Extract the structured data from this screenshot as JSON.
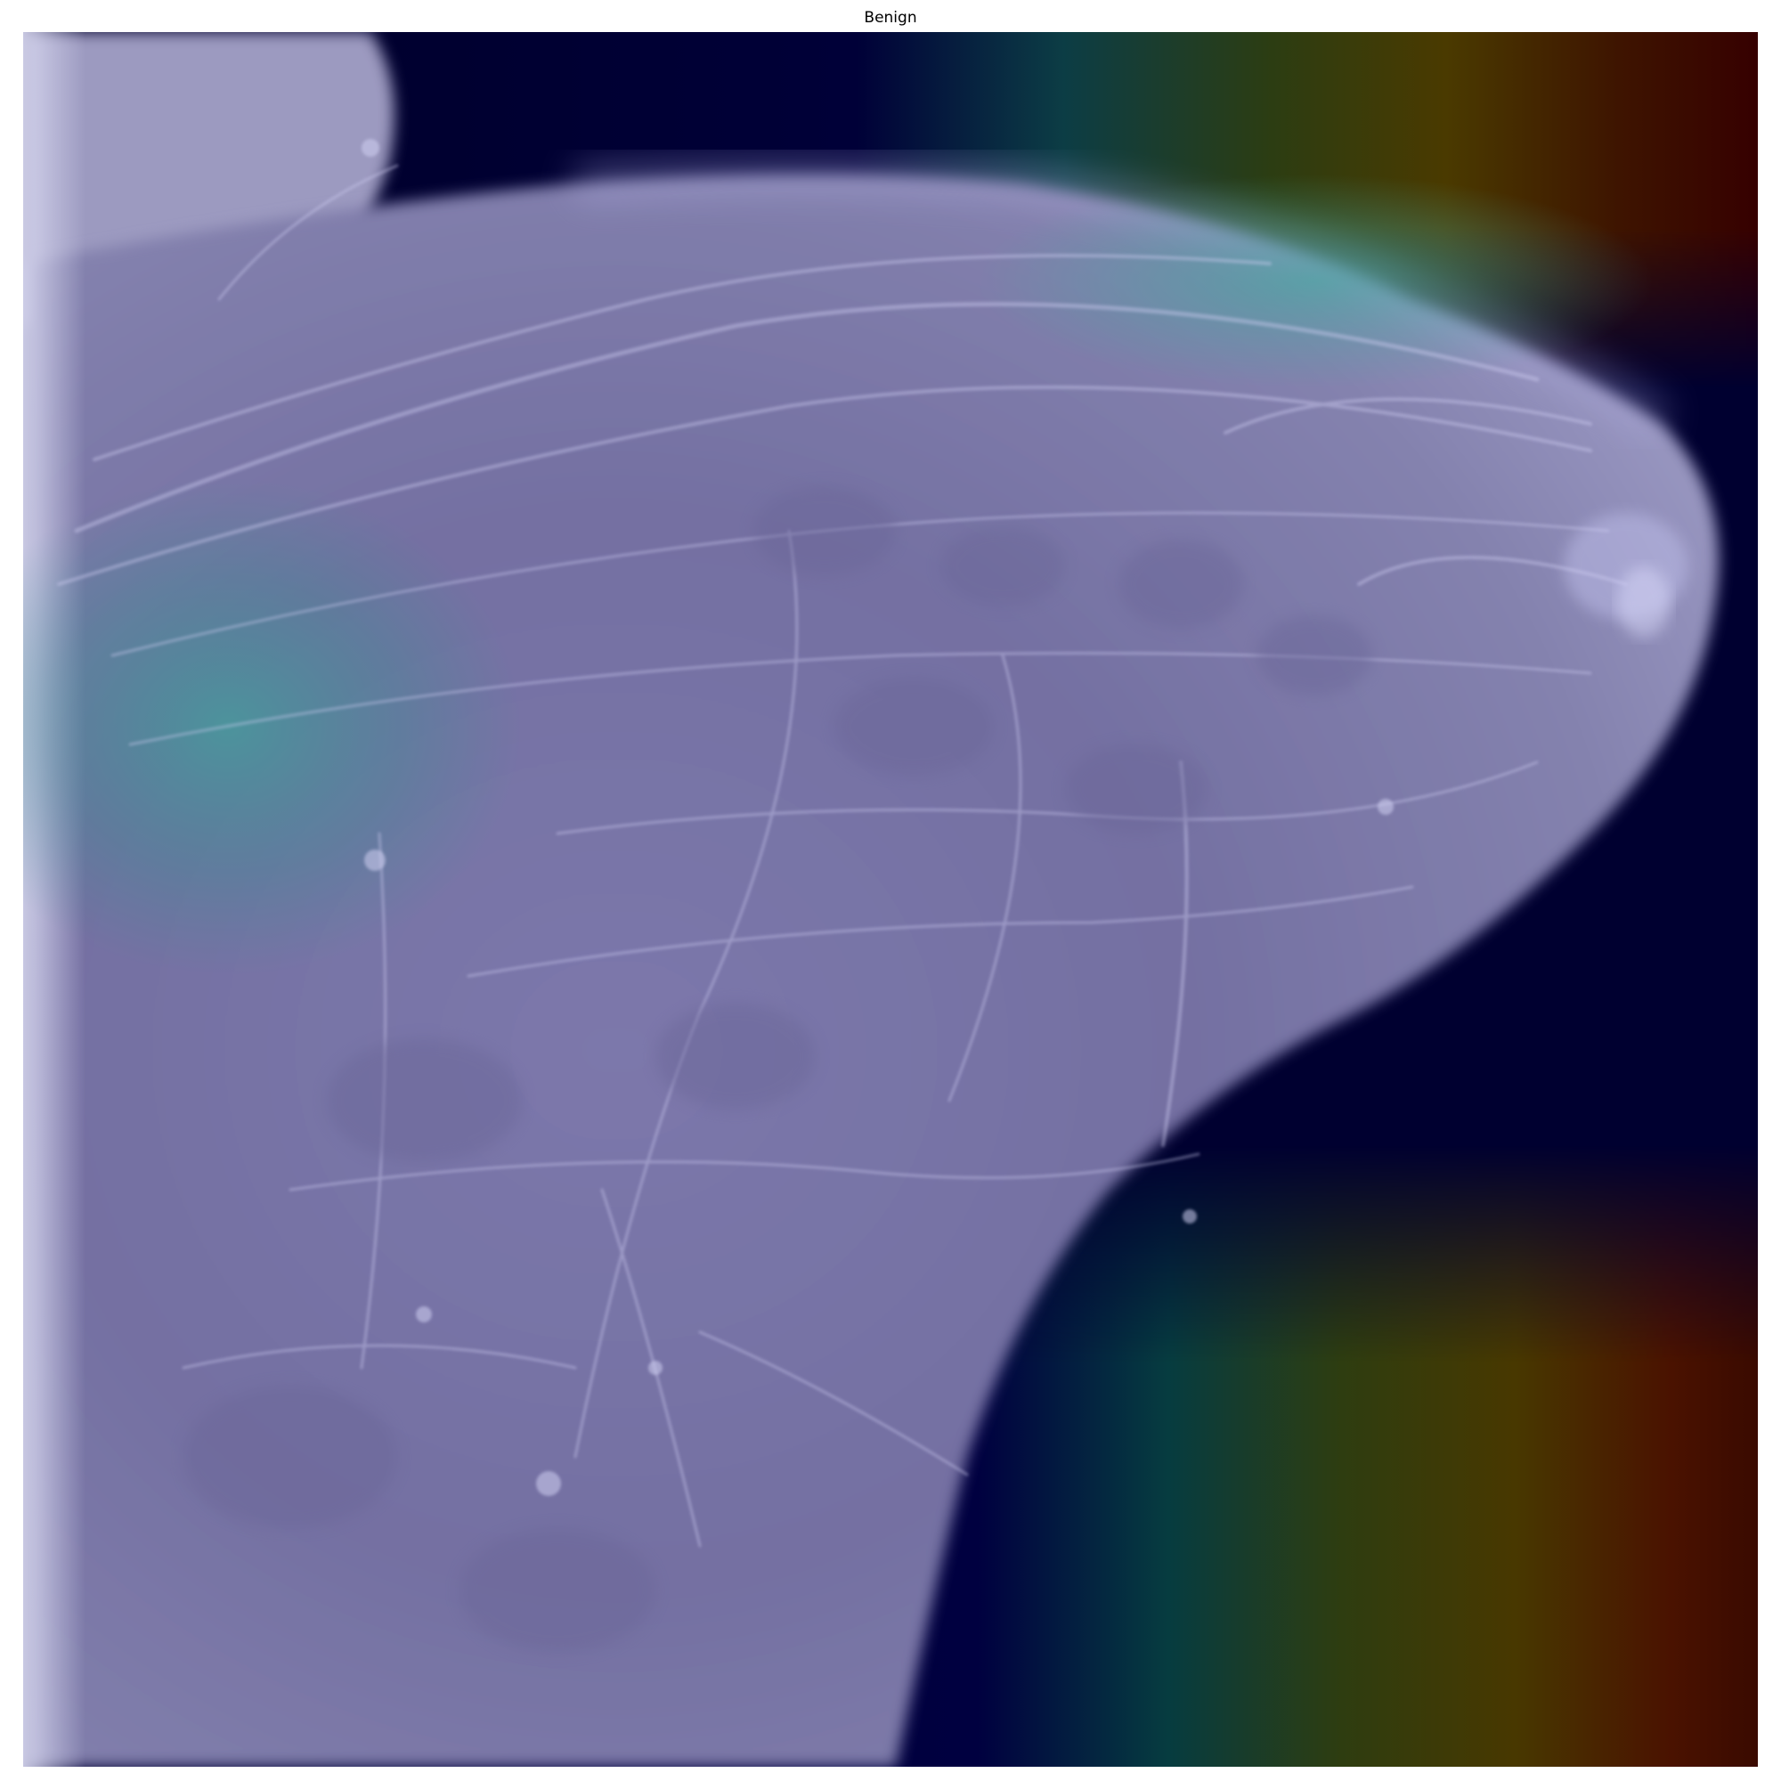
{
  "figure": {
    "title": "Benign"
  },
  "image": {
    "subject": "mammogram-with-heatmap-overlay",
    "colormap": "jet",
    "colors": {
      "background_dark": "#00002a",
      "tissue": "#8a88b4",
      "tissue_bright": "#c8c8ee",
      "heat_cyan": "#2f8f86",
      "heat_yellow": "#4a4400",
      "heat_red": "#5a0000"
    }
  }
}
